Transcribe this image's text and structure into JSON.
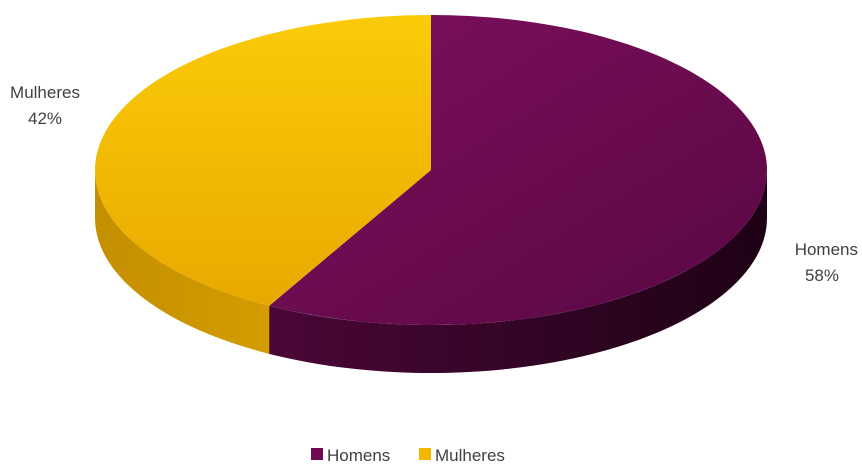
{
  "chart_data": {
    "type": "pie",
    "style": "3d",
    "title": "",
    "categories": [
      "Homens",
      "Mulheres"
    ],
    "values": [
      58,
      42
    ],
    "labels": [
      "58%",
      "42%"
    ],
    "colors": [
      "#6e0b52",
      "#f2b800"
    ],
    "legend": {
      "position": "bottom",
      "entries": [
        "Homens",
        "Mulheres"
      ]
    }
  }
}
